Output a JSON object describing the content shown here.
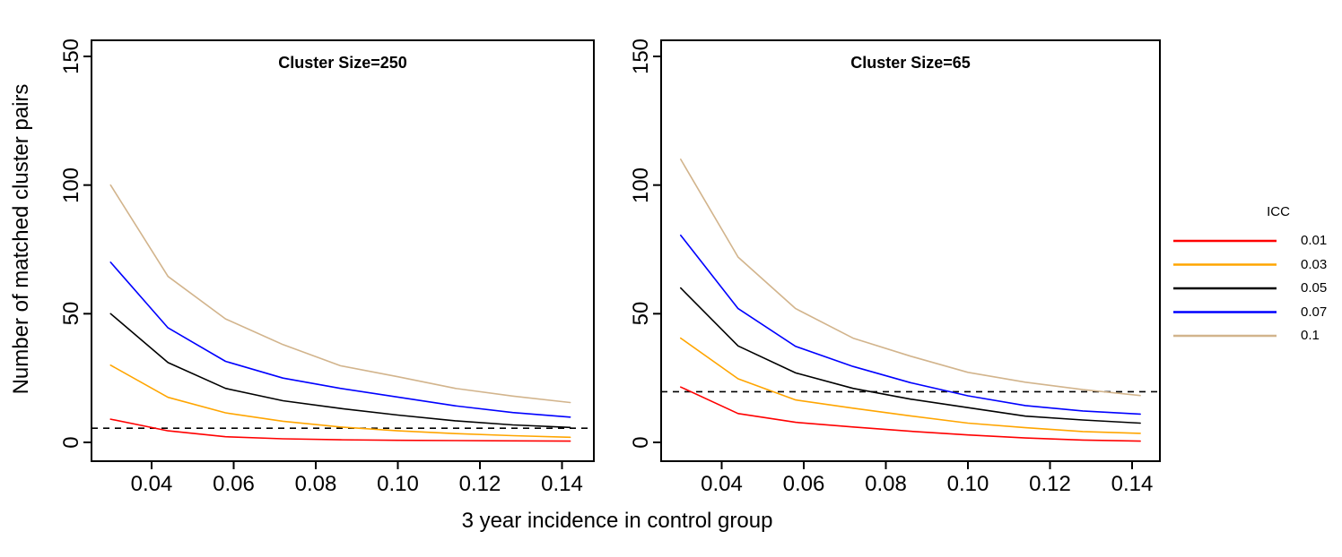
{
  "figure": {
    "background": "#ffffff"
  },
  "y_axis": {
    "label": "Number of matched cluster pairs",
    "tick_labels": [
      "0",
      "50",
      "100",
      "150"
    ],
    "tick_values": [
      0,
      50,
      100,
      150
    ]
  },
  "x_axis": {
    "label": "3 year incidence in control group",
    "tick_labels": [
      "0.04",
      "0.06",
      "0.08",
      "0.10",
      "0.12",
      "0.14"
    ],
    "tick_values": [
      0.04,
      0.06,
      0.08,
      0.1,
      0.12,
      0.14
    ]
  },
  "legend": {
    "title": "ICC",
    "position": "right",
    "entries": [
      {
        "label": "0.01",
        "color": "#ff0000"
      },
      {
        "label": "0.03",
        "color": "#ffa500"
      },
      {
        "label": "0.05",
        "color": "#000000"
      },
      {
        "label": "0.07",
        "color": "#0000ff"
      },
      {
        "label": "0.1",
        "color": "#d2b48c"
      }
    ]
  },
  "chart_data": [
    {
      "type": "line",
      "title": "Cluster Size=250",
      "xlabel": "3 year incidence in control group",
      "ylabel": "Number of matched cluster pairs",
      "x": [
        0.03,
        0.044,
        0.058,
        0.072,
        0.086,
        0.1,
        0.114,
        0.128,
        0.142
      ],
      "series": [
        {
          "name": "0.01",
          "color": "#ff0000",
          "values": [
            9,
            4.5,
            2.2,
            1.4,
            1.0,
            0.8,
            0.7,
            0.6,
            0.5
          ]
        },
        {
          "name": "0.03",
          "color": "#ffa500",
          "values": [
            30,
            17.5,
            11.5,
            8.2,
            6.0,
            4.5,
            3.4,
            2.6,
            2.0
          ]
        },
        {
          "name": "0.05",
          "color": "#000000",
          "values": [
            50,
            31,
            21,
            16.2,
            13.2,
            10.6,
            8.4,
            6.8,
            5.8
          ]
        },
        {
          "name": "0.07",
          "color": "#0000ff",
          "values": [
            70,
            44.5,
            31.5,
            25,
            21,
            17.6,
            14.2,
            11.6,
            9.8
          ]
        },
        {
          "name": "0.1",
          "color": "#d2b48c",
          "values": [
            100,
            64.5,
            48,
            38,
            29.8,
            25.5,
            21,
            18,
            15.5
          ]
        }
      ],
      "reference_line": {
        "style": "dashed",
        "color": "#000000",
        "y": 5.5
      },
      "xlim": [
        0.0255,
        0.1478
      ],
      "ylim": [
        -7,
        156
      ],
      "grid": false,
      "legend_position": "outside-right"
    },
    {
      "type": "line",
      "title": "Cluster Size=65",
      "xlabel": "3 year incidence in control group",
      "ylabel": "Number of matched cluster pairs",
      "x": [
        0.03,
        0.044,
        0.058,
        0.072,
        0.086,
        0.1,
        0.114,
        0.128,
        0.142
      ],
      "series": [
        {
          "name": "0.01",
          "color": "#ff0000",
          "values": [
            21.5,
            11.2,
            7.8,
            6.0,
            4.3,
            2.9,
            1.7,
            0.9,
            0.5
          ]
        },
        {
          "name": "0.03",
          "color": "#ffa500",
          "values": [
            40.5,
            24.7,
            16.5,
            13.3,
            10.3,
            7.5,
            5.7,
            4.2,
            3.5
          ]
        },
        {
          "name": "0.05",
          "color": "#000000",
          "values": [
            60,
            37.5,
            27,
            21,
            16.8,
            13.5,
            10.2,
            8.7,
            7.5
          ]
        },
        {
          "name": "0.07",
          "color": "#0000ff",
          "values": [
            80.5,
            52,
            37.3,
            29.5,
            23.2,
            18.1,
            14.3,
            12.2,
            11.0
          ]
        },
        {
          "name": "0.1",
          "color": "#d2b48c",
          "values": [
            110,
            72,
            52,
            40.5,
            33.5,
            27.2,
            23.4,
            20.5,
            18.2
          ]
        }
      ],
      "reference_line": {
        "style": "dashed",
        "color": "#000000",
        "y": 19.7
      },
      "xlim": [
        0.0252,
        0.1468
      ],
      "ylim": [
        -7,
        156
      ],
      "grid": false,
      "legend_position": "outside-right"
    }
  ]
}
